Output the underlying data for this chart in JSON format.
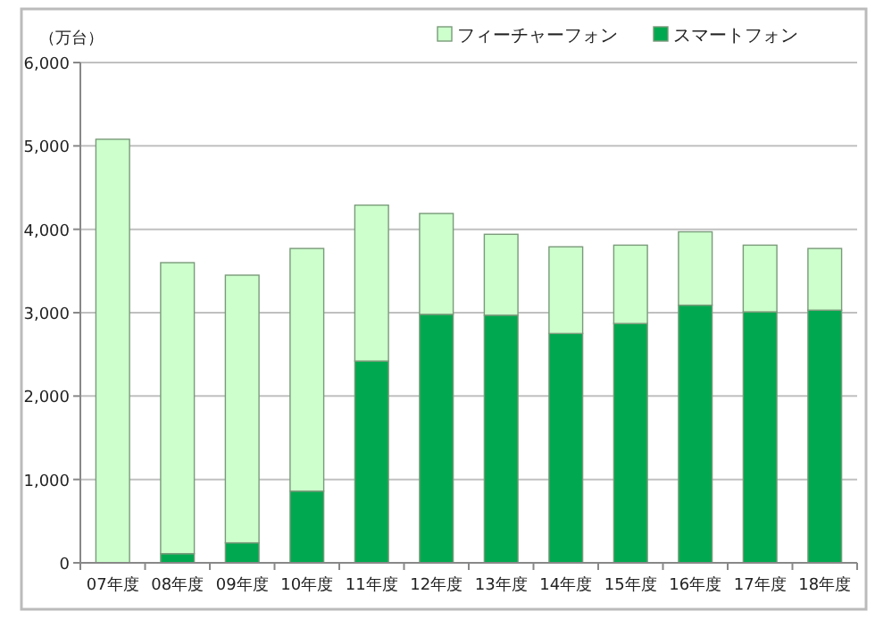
{
  "chart_data": {
    "type": "bar",
    "stacked": true,
    "ylabel": "（万台）",
    "categories": [
      "07年度",
      "08年度",
      "09年度",
      "10年度",
      "11年度",
      "12年度",
      "13年度",
      "14年度",
      "15年度",
      "16年度",
      "17年度",
      "18年度"
    ],
    "series": [
      {
        "name": "スマートフォン",
        "color": "#00a94f",
        "values": [
          null,
          110,
          240,
          860,
          2420,
          2980,
          2970,
          2750,
          2870,
          3090,
          3010,
          3030
        ]
      },
      {
        "name": "フィーチャーフォン",
        "color": "#ccffcc",
        "values": [
          5080,
          3490,
          3210,
          2910,
          1870,
          1210,
          970,
          1040,
          940,
          880,
          800,
          740
        ]
      }
    ],
    "ylim": [
      0,
      6000
    ],
    "yticks": [
      0,
      {
        "value": 1000,
        "label": "1,000"
      },
      {
        "value": 2000,
        "label": "2,000"
      },
      {
        "value": 3000,
        "label": "3,000"
      },
      {
        "value": 4000,
        "label": "4,000"
      },
      {
        "value": 5000,
        "label": "5,000"
      },
      {
        "value": 6000,
        "label": "6,000"
      }
    ],
    "grid": "y",
    "legend": "top right"
  }
}
